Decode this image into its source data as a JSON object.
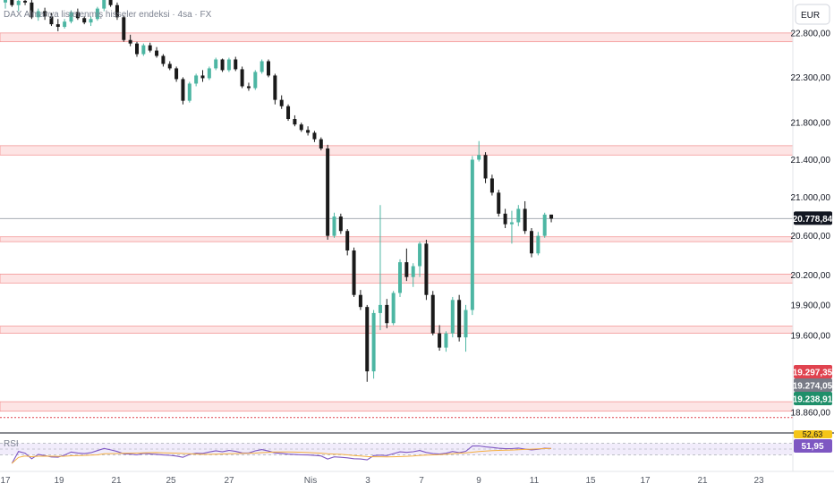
{
  "title": "DAX Almanya listelenmiş hisseler endeksi · 4sa · FX",
  "currency": "EUR",
  "colors": {
    "up": "#4db6a3",
    "down": "#1a1a1a",
    "zone_fill": "#fde4e4",
    "zone_line": "#f28b8b",
    "grid": "#eef0f3",
    "rsi_line": "#7e57c2",
    "rsi_ma": "#f5b041",
    "rsi_band": "#f1ecfb"
  },
  "chart_data": {
    "type": "candlestick",
    "title": "DAX Almanya listelenmiş hisseler endeksi · 4sa · FX",
    "x_ticks": [
      "17",
      "19",
      "21",
      "25",
      "27",
      "Nis",
      "3",
      "7",
      "9",
      "11",
      "15",
      "17",
      "21",
      "23"
    ],
    "y_ticks": [
      "22.800,00",
      "22.300,00",
      "21.800,00",
      "21.400,00",
      "21.000,00",
      "20.600,00",
      "20.200,00",
      "19.900,00",
      "19.600,00",
      "18.860,00"
    ],
    "y_range": [
      18800,
      23200
    ],
    "scale": "log",
    "grid": false,
    "current_price": {
      "value": 20778.84,
      "label": "20.778,84"
    },
    "price_badges": [
      {
        "label": "19.297,35",
        "color": "#e0434f"
      },
      {
        "label": "19.274,05",
        "color": "#787b86"
      },
      {
        "label": "19.238,91",
        "color": "#1f8f6a"
      }
    ],
    "zones": [
      [
        22700,
        22800
      ],
      [
        21450,
        21550
      ],
      [
        20540,
        20590
      ],
      [
        20120,
        20210
      ],
      [
        19620,
        19690
      ],
      [
        18870,
        18960
      ]
    ],
    "candles": [
      [
        23150,
        23250,
        23080,
        23190
      ],
      [
        23190,
        23230,
        23100,
        23120
      ],
      [
        23120,
        23200,
        23050,
        23170
      ],
      [
        23170,
        23240,
        23120,
        23150
      ],
      [
        23150,
        23180,
        22960,
        22980
      ],
      [
        22980,
        23080,
        22940,
        23050
      ],
      [
        23050,
        23090,
        22950,
        22990
      ],
      [
        22990,
        23030,
        22880,
        22900
      ],
      [
        22900,
        22960,
        22820,
        22870
      ],
      [
        22870,
        22960,
        22850,
        22930
      ],
      [
        22930,
        23060,
        22910,
        23040
      ],
      [
        23040,
        23080,
        22950,
        22970
      ],
      [
        22970,
        22990,
        22900,
        22920
      ],
      [
        22920,
        22990,
        22880,
        22960
      ],
      [
        22960,
        23100,
        22940,
        23080
      ],
      [
        23080,
        23250,
        23050,
        23230
      ],
      [
        23230,
        23260,
        23100,
        23120
      ],
      [
        23120,
        23150,
        22950,
        22980
      ],
      [
        22980,
        23000,
        22700,
        22720
      ],
      [
        22720,
        22780,
        22650,
        22680
      ],
      [
        22680,
        22700,
        22530,
        22560
      ],
      [
        22560,
        22680,
        22540,
        22660
      ],
      [
        22660,
        22690,
        22580,
        22600
      ],
      [
        22600,
        22640,
        22520,
        22540
      ],
      [
        22540,
        22560,
        22420,
        22450
      ],
      [
        22450,
        22480,
        22380,
        22400
      ],
      [
        22400,
        22420,
        22250,
        22280
      ],
      [
        22280,
        22300,
        22000,
        22040
      ],
      [
        22040,
        22250,
        22020,
        22230
      ],
      [
        22230,
        22340,
        22200,
        22320
      ],
      [
        22320,
        22380,
        22250,
        22290
      ],
      [
        22290,
        22420,
        22270,
        22400
      ],
      [
        22400,
        22520,
        22380,
        22500
      ],
      [
        22500,
        22510,
        22360,
        22380
      ],
      [
        22380,
        22520,
        22360,
        22500
      ],
      [
        22500,
        22530,
        22370,
        22390
      ],
      [
        22390,
        22420,
        22180,
        22200
      ],
      [
        22200,
        22240,
        22150,
        22180
      ],
      [
        22180,
        22380,
        22160,
        22360
      ],
      [
        22360,
        22500,
        22340,
        22480
      ],
      [
        22480,
        22500,
        22300,
        22320
      ],
      [
        22320,
        22340,
        22000,
        22050
      ],
      [
        22050,
        22100,
        21950,
        21980
      ],
      [
        21980,
        22000,
        21820,
        21840
      ],
      [
        21840,
        21880,
        21760,
        21780
      ],
      [
        21780,
        21800,
        21700,
        21720
      ],
      [
        21720,
        21760,
        21660,
        21690
      ],
      [
        21690,
        21710,
        21590,
        21620
      ],
      [
        21620,
        21640,
        21500,
        21520
      ],
      [
        21520,
        21560,
        20560,
        20600
      ],
      [
        20600,
        20840,
        20580,
        20800
      ],
      [
        20800,
        20830,
        20620,
        20650
      ],
      [
        20650,
        20670,
        20400,
        20450
      ],
      [
        20450,
        20480,
        19980,
        20000
      ],
      [
        20000,
        20050,
        19850,
        19880
      ],
      [
        19880,
        19900,
        19150,
        19250
      ],
      [
        19250,
        19850,
        19180,
        19820
      ],
      [
        19820,
        20920,
        19650,
        19900
      ],
      [
        19900,
        19960,
        19670,
        19720
      ],
      [
        19720,
        20040,
        19700,
        20020
      ],
      [
        20020,
        20360,
        19980,
        20330
      ],
      [
        20330,
        20470,
        20140,
        20180
      ],
      [
        20180,
        20320,
        20080,
        20290
      ],
      [
        20290,
        20540,
        20180,
        20520
      ],
      [
        20520,
        20560,
        19950,
        20000
      ],
      [
        20000,
        20040,
        19600,
        19620
      ],
      [
        19620,
        19700,
        19450,
        19480
      ],
      [
        19480,
        19640,
        19440,
        19620
      ],
      [
        19620,
        19980,
        19580,
        19950
      ],
      [
        19950,
        20000,
        19540,
        19580
      ],
      [
        19580,
        19900,
        19440,
        19850
      ],
      [
        19850,
        21440,
        19800,
        21400
      ],
      [
        21400,
        21600,
        21380,
        21450
      ],
      [
        21450,
        21480,
        21150,
        21200
      ],
      [
        21200,
        21240,
        21020,
        21050
      ],
      [
        21050,
        21080,
        20800,
        20830
      ],
      [
        20830,
        20880,
        20680,
        20720
      ],
      [
        20720,
        20860,
        20520,
        20740
      ],
      [
        20740,
        20920,
        20700,
        20880
      ],
      [
        20880,
        20960,
        20620,
        20650
      ],
      [
        20650,
        20680,
        20380,
        20420
      ],
      [
        20420,
        20640,
        20400,
        20600
      ],
      [
        20600,
        20840,
        20580,
        20820
      ],
      [
        20820,
        20820,
        20740,
        20778
      ]
    ],
    "rsi": {
      "label": "RSI",
      "last_labels": [
        "52,63",
        "51,95"
      ],
      "range": [
        0,
        100
      ],
      "bands": [
        30,
        70
      ]
    }
  }
}
